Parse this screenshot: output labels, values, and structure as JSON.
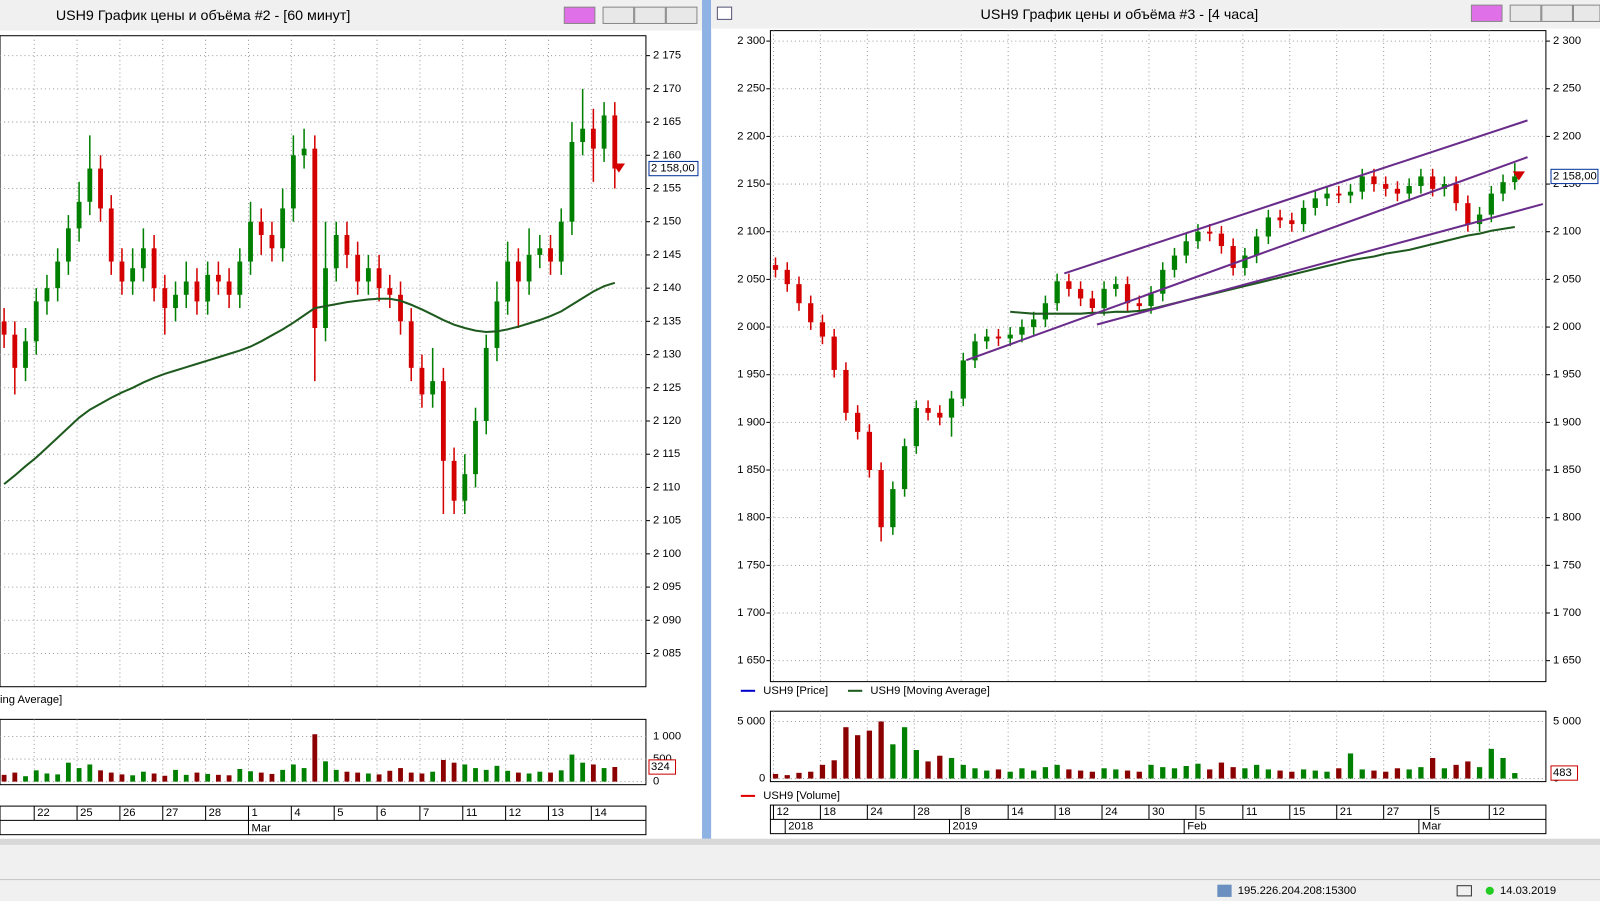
{
  "chart_data": [
    {
      "type": "candlestick",
      "title": "USH9 График цены и объёма #2 - [60 минут]",
      "up_color": "#008000",
      "down_color": "#d40000",
      "grid": true,
      "ylim": [
        2080,
        2178
      ],
      "yticks": [
        {
          "value": 2085,
          "label": "2 085"
        },
        {
          "value": 2090,
          "label": "2 090"
        },
        {
          "value": 2095,
          "label": "2 095"
        },
        {
          "value": 2100,
          "label": "2 100"
        },
        {
          "value": 2105,
          "label": "2 105"
        },
        {
          "value": 2110,
          "label": "2 110"
        },
        {
          "value": 2115,
          "label": "2 115"
        },
        {
          "value": 2120,
          "label": "2 120"
        },
        {
          "value": 2125,
          "label": "2 125"
        },
        {
          "value": 2130,
          "label": "2 130"
        },
        {
          "value": 2135,
          "label": "2 135"
        },
        {
          "value": 2140,
          "label": "2 140"
        },
        {
          "value": 2145,
          "label": "2 145"
        },
        {
          "value": 2150,
          "label": "2 150"
        },
        {
          "value": 2155,
          "label": "2 155"
        },
        {
          "value": 2160,
          "label": "2 160"
        },
        {
          "value": 2165,
          "label": "2 165"
        },
        {
          "value": 2170,
          "label": "2 170"
        },
        {
          "value": 2175,
          "label": "2 175"
        }
      ],
      "last_price": {
        "value": 2158,
        "label": "2 158,00"
      },
      "categories": [
        null,
        null,
        null,
        "22",
        null,
        null,
        null,
        "25",
        null,
        null,
        null,
        "26",
        null,
        null,
        null,
        "27",
        null,
        null,
        null,
        "28",
        null,
        null,
        null,
        "1",
        null,
        null,
        null,
        "4",
        null,
        null,
        null,
        "5",
        null,
        null,
        null,
        "6",
        null,
        null,
        null,
        "7",
        null,
        null,
        null,
        "11",
        null,
        null,
        null,
        "12",
        null,
        null,
        null,
        "13",
        null,
        null,
        null,
        "14",
        null,
        null
      ],
      "period_labels": [
        null,
        null,
        null,
        null,
        null,
        null,
        null,
        null,
        null,
        null,
        null,
        null,
        null,
        null,
        null,
        null,
        null,
        null,
        null,
        null,
        null,
        null,
        null,
        "Mar",
        null,
        null,
        null,
        null,
        null,
        null,
        null,
        null,
        null,
        null,
        null,
        null,
        null,
        null,
        null,
        null,
        null,
        null,
        null,
        null,
        null,
        null,
        null,
        null,
        null,
        null,
        null,
        null,
        null,
        null,
        null,
        null,
        null,
        null
      ],
      "open": [
        2135,
        2133,
        2128,
        2132,
        2138,
        2140,
        2144,
        2149,
        2153,
        2158,
        2152,
        2144,
        2141,
        2143,
        2146,
        2140,
        2137,
        2139,
        2141,
        2138,
        2142,
        2141,
        2139,
        2144,
        2150,
        2148,
        2146,
        2152,
        2160,
        2161,
        2134,
        2143,
        2148,
        2145,
        2141,
        2143,
        2140,
        2139,
        2135,
        2128,
        2124,
        2126,
        2114,
        2108,
        2112,
        2120,
        2131,
        2138,
        2144,
        2141,
        2145,
        2146,
        2144,
        2150,
        2162,
        2164,
        2161,
        2166
      ],
      "high": [
        2137,
        2135,
        2134,
        2140,
        2142,
        2146,
        2151,
        2156,
        2163,
        2160,
        2154,
        2146,
        2146,
        2149,
        2148,
        2142,
        2141,
        2144,
        2143,
        2144,
        2144,
        2143,
        2146,
        2153,
        2152,
        2150,
        2155,
        2163,
        2164,
        2163,
        2150,
        2150,
        2150,
        2147,
        2145,
        2145,
        2142,
        2141,
        2137,
        2130,
        2131,
        2128,
        2116,
        2115,
        2122,
        2133,
        2141,
        2147,
        2146,
        2149,
        2148,
        2148,
        2152,
        2165,
        2170,
        2167,
        2168,
        2168
      ],
      "low": [
        2131,
        2124,
        2126,
        2130,
        2136,
        2138,
        2142,
        2147,
        2151,
        2150,
        2142,
        2139,
        2139,
        2141,
        2138,
        2133,
        2135,
        2137,
        2136,
        2136,
        2139,
        2137,
        2137,
        2142,
        2145,
        2144,
        2144,
        2150,
        2158,
        2126,
        2132,
        2141,
        2143,
        2139,
        2139,
        2138,
        2137,
        2133,
        2126,
        2122,
        2122,
        2106,
        2106,
        2106,
        2110,
        2118,
        2129,
        2136,
        2134,
        2139,
        2143,
        2142,
        2142,
        2148,
        2160,
        2156,
        2159,
        2155
      ],
      "close": [
        2133,
        2128,
        2132,
        2138,
        2140,
        2144,
        2149,
        2153,
        2158,
        2152,
        2144,
        2141,
        2143,
        2146,
        2140,
        2137,
        2139,
        2141,
        2138,
        2142,
        2141,
        2139,
        2144,
        2150,
        2148,
        2146,
        2152,
        2160,
        2161,
        2134,
        2143,
        2148,
        2145,
        2141,
        2143,
        2140,
        2139,
        2135,
        2128,
        2124,
        2126,
        2114,
        2108,
        2112,
        2120,
        2131,
        2138,
        2144,
        2141,
        2145,
        2146,
        2144,
        2150,
        2162,
        2164,
        2161,
        2166,
        2158
      ],
      "series": [
        {
          "name": "ing Average]",
          "color": "#1e5a1e",
          "values": [
            2110.5,
            2111.8,
            2113.2,
            2114.5,
            2116,
            2117.5,
            2119,
            2120.5,
            2121.7,
            2122.6,
            2123.5,
            2124.3,
            2125,
            2125.8,
            2126.5,
            2127.1,
            2127.6,
            2128.1,
            2128.6,
            2129.1,
            2129.6,
            2130.1,
            2130.6,
            2131.2,
            2132,
            2132.9,
            2133.8,
            2134.8,
            2135.9,
            2137,
            2137.3,
            2137.6,
            2137.9,
            2138.1,
            2138.3,
            2138.4,
            2138.4,
            2138.1,
            2137.5,
            2136.8,
            2136,
            2135.2,
            2134.5,
            2134,
            2133.6,
            2133.4,
            2133.5,
            2133.8,
            2134.2,
            2134.7,
            2135.2,
            2135.8,
            2136.5,
            2137.5,
            2138.5,
            2139.5,
            2140.3,
            2140.8
          ]
        }
      ],
      "volume": {
        "ylim": [
          0,
          1380
        ],
        "yticks": [
          0,
          500,
          {
            "value": 1000,
            "label": "1 000"
          }
        ],
        "values": [
          150,
          200,
          120,
          250,
          180,
          160,
          420,
          300,
          380,
          250,
          200,
          160,
          140,
          220,
          180,
          130,
          260,
          150,
          200,
          170,
          150,
          140,
          280,
          230,
          200,
          170,
          260,
          380,
          300,
          1050,
          450,
          260,
          220,
          200,
          180,
          160,
          240,
          300,
          200,
          180,
          220,
          480,
          420,
          380,
          300,
          260,
          350,
          240,
          200,
          180,
          220,
          200,
          250,
          600,
          420,
          380,
          300,
          324
        ]
      }
    },
    {
      "type": "candlestick",
      "title": "USH9 График цены и объёма #3 - [4 часа]",
      "up_color": "#008000",
      "down_color": "#d40000",
      "grid": true,
      "ylim": [
        1628,
        2311
      ],
      "yticks": [
        {
          "value": 1650,
          "label": "1 650"
        },
        {
          "value": 1700,
          "label": "1 700"
        },
        {
          "value": 1750,
          "label": "1 750"
        },
        {
          "value": 1800,
          "label": "1 800"
        },
        {
          "value": 1850,
          "label": "1 850"
        },
        {
          "value": 1900,
          "label": "1 900"
        },
        {
          "value": 1950,
          "label": "1 950"
        },
        {
          "value": 2000,
          "label": "2 000"
        },
        {
          "value": 2050,
          "label": "2 050"
        },
        {
          "value": 2100,
          "label": "2 100"
        },
        {
          "value": 2150,
          "label": "2 150"
        },
        {
          "value": 2200,
          "label": "2 200"
        },
        {
          "value": 2250,
          "label": "2 250"
        },
        {
          "value": 2300,
          "label": "2 300"
        }
      ],
      "last_price": {
        "value": 2158,
        "label": "2 158,00"
      },
      "price_name": "USH9 [Price]",
      "price_color": "#0000cc",
      "categories": [
        "12",
        null,
        null,
        null,
        "18",
        null,
        null,
        null,
        "24",
        null,
        null,
        null,
        "28",
        null,
        null,
        null,
        "8",
        null,
        null,
        null,
        "14",
        null,
        null,
        null,
        "18",
        null,
        null,
        null,
        "24",
        null,
        null,
        null,
        "30",
        null,
        null,
        null,
        "5",
        null,
        null,
        null,
        "11",
        null,
        null,
        null,
        "15",
        null,
        null,
        null,
        "21",
        null,
        null,
        null,
        "27",
        null,
        null,
        null,
        "5",
        null,
        null,
        null,
        null,
        "12",
        null,
        null
      ],
      "period_labels": [
        null,
        "2018",
        null,
        null,
        null,
        null,
        null,
        null,
        null,
        null,
        null,
        null,
        null,
        null,
        null,
        "2019",
        null,
        null,
        null,
        null,
        null,
        null,
        null,
        null,
        null,
        null,
        null,
        null,
        null,
        null,
        null,
        null,
        null,
        null,
        null,
        "Feb",
        null,
        null,
        null,
        null,
        null,
        null,
        null,
        null,
        null,
        null,
        null,
        null,
        null,
        null,
        null,
        null,
        null,
        null,
        null,
        "Mar",
        null,
        null,
        null,
        null,
        null,
        null,
        null,
        null
      ],
      "open": [
        2065,
        2060,
        2045,
        2025,
        2005,
        1990,
        1955,
        1910,
        1890,
        1850,
        1790,
        1830,
        1875,
        1915,
        1910,
        1905,
        1925,
        1965,
        1985,
        1990,
        1988,
        1992,
        2000,
        2008,
        2025,
        2048,
        2040,
        2030,
        2020,
        2040,
        2045,
        2025,
        2022,
        2035,
        2060,
        2075,
        2090,
        2100,
        2098,
        2085,
        2062,
        2075,
        2095,
        2115,
        2112,
        2108,
        2125,
        2135,
        2140,
        2138,
        2142,
        2158,
        2150,
        2145,
        2140,
        2148,
        2158,
        2145,
        2150,
        2130,
        2108,
        2118,
        2140,
        2152
      ],
      "high": [
        2073,
        2068,
        2053,
        2033,
        2013,
        1998,
        1963,
        1918,
        1898,
        1858,
        1838,
        1883,
        1923,
        1923,
        1918,
        1933,
        1973,
        1993,
        1998,
        1998,
        2000,
        2008,
        2016,
        2033,
        2056,
        2056,
        2048,
        2038,
        2048,
        2053,
        2053,
        2033,
        2043,
        2068,
        2083,
        2098,
        2108,
        2108,
        2106,
        2093,
        2083,
        2103,
        2123,
        2123,
        2120,
        2133,
        2143,
        2148,
        2148,
        2150,
        2166,
        2166,
        2158,
        2153,
        2156,
        2166,
        2166,
        2158,
        2158,
        2138,
        2126,
        2148,
        2160,
        2172
      ],
      "low": [
        2052,
        2037,
        2017,
        1997,
        1982,
        1947,
        1902,
        1882,
        1842,
        1775,
        1782,
        1822,
        1867,
        1902,
        1897,
        1885,
        1917,
        1957,
        1977,
        1980,
        1980,
        1984,
        1992,
        2000,
        2017,
        2032,
        2022,
        2012,
        2012,
        2032,
        2017,
        2014,
        2014,
        2027,
        2052,
        2067,
        2082,
        2090,
        2077,
        2054,
        2054,
        2067,
        2087,
        2104,
        2100,
        2100,
        2117,
        2127,
        2130,
        2130,
        2134,
        2142,
        2137,
        2132,
        2132,
        2140,
        2137,
        2137,
        2122,
        2100,
        2100,
        2110,
        2132,
        2144
      ],
      "close": [
        2060,
        2045,
        2025,
        2005,
        1990,
        1955,
        1910,
        1890,
        1850,
        1790,
        1830,
        1875,
        1915,
        1910,
        1905,
        1925,
        1965,
        1985,
        1990,
        1988,
        1992,
        2000,
        2008,
        2025,
        2048,
        2040,
        2030,
        2020,
        2040,
        2045,
        2025,
        2022,
        2035,
        2060,
        2075,
        2090,
        2100,
        2098,
        2085,
        2062,
        2075,
        2095,
        2115,
        2112,
        2108,
        2125,
        2135,
        2140,
        2138,
        2142,
        2158,
        2150,
        2145,
        2140,
        2148,
        2158,
        2145,
        2150,
        2130,
        2108,
        2118,
        2140,
        2152,
        2158
      ],
      "series": [
        {
          "name": "USH9 [Moving Average]",
          "color": "#1e5a1e",
          "values": [
            null,
            null,
            null,
            null,
            null,
            null,
            null,
            null,
            null,
            null,
            null,
            null,
            null,
            null,
            null,
            null,
            null,
            null,
            null,
            null,
            2016,
            2015,
            2014,
            2014,
            2014,
            2014,
            2014,
            2015,
            2015,
            2016,
            2016,
            2017,
            2019,
            2022,
            2025,
            2028,
            2031,
            2034,
            2037,
            2040,
            2043,
            2046,
            2049,
            2052,
            2055,
            2058,
            2061,
            2064,
            2067,
            2070,
            2072,
            2074,
            2077,
            2079,
            2081,
            2084,
            2087,
            2090,
            2093,
            2096,
            2098,
            2101,
            2103,
            2105
          ]
        }
      ],
      "volume": {
        "name": "USH9 [Volume]",
        "color": "#e00000",
        "ylim": [
          0,
          5900
        ],
        "yticks": [
          0,
          {
            "value": 5000,
            "label": "5 000"
          }
        ],
        "values": [
          400,
          300,
          500,
          600,
          1200,
          1600,
          4500,
          3800,
          4200,
          5000,
          3000,
          4500,
          2500,
          1500,
          2000,
          1800,
          1200,
          900,
          700,
          800,
          600,
          900,
          700,
          1000,
          1200,
          800,
          700,
          600,
          900,
          800,
          700,
          600,
          1200,
          1000,
          900,
          1100,
          1300,
          800,
          1400,
          1000,
          900,
          1200,
          800,
          700,
          600,
          800,
          700,
          600,
          900,
          2200,
          800,
          700,
          600,
          900,
          800,
          1000,
          1800,
          900,
          1200,
          1500,
          1000,
          2600,
          1800,
          483
        ]
      }
    }
  ],
  "status_bar": {
    "address": "195.226.204.208:15300",
    "date": "14.03.2019"
  }
}
